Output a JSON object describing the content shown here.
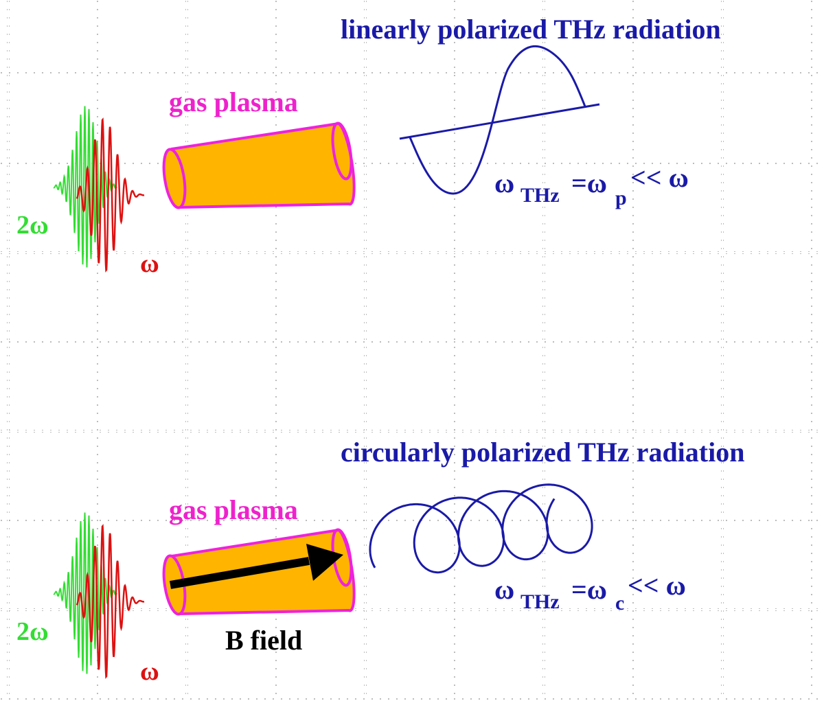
{
  "panels": [
    {
      "title": "linearly polarized THz radiation",
      "plasma_label": "gas plasma",
      "freq_2w": "2ω",
      "freq_w": "ω",
      "relation": {
        "lhs": "ω",
        "lhs_sub": "THz",
        "eq": "=ω",
        "rhs_sub": "p",
        "tail": "<< ω"
      }
    },
    {
      "title": "circularly polarized THz radiation",
      "plasma_label": "gas plasma",
      "freq_2w": "2ω",
      "freq_w": "ω",
      "field_label": "B field",
      "relation": {
        "lhs": "ω",
        "lhs_sub": "THz",
        "eq": "=ω",
        "rhs_sub": "c",
        "tail": "<< ω"
      }
    }
  ],
  "colors": {
    "title": "#1a1aa8",
    "plasma_label": "#ee22cc",
    "cylinder_fill": "#ffb400",
    "cylinder_stroke": "#ee22dd",
    "green_pulse": "#33dd33",
    "red_pulse": "#dd1111",
    "wave": "#1a1aa8",
    "arrow": "#000000"
  }
}
